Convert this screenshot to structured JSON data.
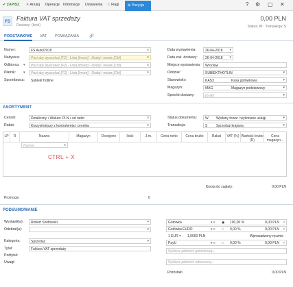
{
  "toolbar": {
    "save": "ZAPISZ",
    "cancel": "Anuluj",
    "operations": "Operacje",
    "info": "Informacje",
    "settings": "Ustawienia",
    "flags": "Flagi",
    "position": "Pozycja",
    "window_icons": [
      "?",
      "⚙",
      "▢",
      "✕"
    ]
  },
  "header": {
    "badge": "FS",
    "title": "Faktura VAT sprzedaży",
    "subtitle": "Dostawy: (brak)",
    "amount": "0,00 PLN",
    "status": "Status: W  ·  Transakcja: S"
  },
  "tabs": [
    "PODSTAWOWE",
    "VAT",
    "POWIĄZANIA",
    "🔗"
  ],
  "left_form": {
    "numer_label": "Numer:",
    "numer_value": "FS Auto/2018",
    "nabywca_label": "Nabywca:",
    "nabywca_value": "Pozi aby wyszukać [F2] - Lista [Insert] - Dodaj i wstaw [Ctrl]",
    "odbiorca_label": "Odbiorca:",
    "odbiorca_value": "Pozi aby wyszukać [F2] - Lista [Insert] - Dodaj i wstaw [Ctrl]",
    "platnik_label": "Płatnik:",
    "platnik_value": "Pozi aby wyszukać [F2] - Lista [Insert] - Dodaj i wstaw [Ctrl]",
    "sprzedawca_label": "Sprzedawca:",
    "sprzedawca_value": "Subiekt hotline"
  },
  "right_form": {
    "data_wyst_label": "Data wystawienia:",
    "data_wyst_value": "26-04-2018",
    "data_zak_label": "Data zak. dostawy:",
    "data_zak_value": "26-04-2018",
    "miejsce_label": "Miejsce wystawienia:",
    "miejsce_value": "Wrocław",
    "oddzial_label": "Oddział:",
    "oddzial_value": "SUBIEKTHOTLIN",
    "stanowisko_label": "Stanowisko:",
    "stanowisko_code": "KAS3",
    "stanowisko_value": "Kasa gotówkowa",
    "magazyn_label": "Magazyn:",
    "magazyn_code": "MAG",
    "magazyn_value": "Magazyn podstawowy",
    "sposob_label": "Sposób dostawy:",
    "sposob_value": "(brak)"
  },
  "asortyment": {
    "title": "ASORTYMENT",
    "cennik_label": "Cennik:",
    "cennik_value": "Detaliczny • Waluta: PLN • od netto",
    "rabat_label": "Rabat:",
    "rabat_value": "Korzystniejszy z kontrahenta i cennika",
    "status_label": "Status dokumentu:",
    "status_code": "W",
    "status_value": "Wydany towar i wykonane usługi",
    "transakcja_label": "Transakcja:",
    "transakcja_code": "S",
    "transakcja_value": "Sprzedaż krajowa"
  },
  "grid": {
    "headers": [
      "LP",
      "R",
      "Nazwa",
      "Magazyn",
      "Dostępne",
      "Ilość",
      "J.m.",
      "Cena netto",
      "Cena brutto",
      "Rabat",
      "VAT (%)",
      "Wartość brutto (R)",
      "Cena magazyn..."
    ],
    "placeholder": "Nazwa",
    "hint": "CTRL + X"
  },
  "kwota": {
    "label": "Kwota do zapłaty:",
    "value": "0,00 PLN"
  },
  "promocje": {
    "label": "Promocje:",
    "value": "0"
  },
  "podsumowanie": {
    "title": "PODSUMOWANIE",
    "wystawil_label": "Wystawił(a):",
    "wystawil_value": "Robert Szefowski",
    "odebral_label": "Odebrał(a):",
    "odebral_value": "",
    "kategoria_label": "Kategoria:",
    "kategoria_value": "Sprzedaż",
    "tytul_label": "Tytuł:",
    "tytul_value": "Faktura VAT sprzedaży",
    "podtytul_label": "Podtytuł:",
    "uwagi_label": "Uwagi:"
  },
  "payments": {
    "gotowka_label": "Gotówka",
    "gotowka_pct": "100,00 %",
    "gotowka_value": "0,00 PLN",
    "euro_label": "Gotówka EURO",
    "euro_pct": "0,00 %",
    "euro_value": "0,00 PLN",
    "kurs_left": "1 EUR =",
    "kurs_right": "1,0000 PLN",
    "kurs_note": "Wprowadzony ręcznie",
    "payu_label": "PayU",
    "payu_pct": "0,00 %",
    "payu_value": "0,00 PLN",
    "placeholder1": "Wybierz płatność gotówkową...",
    "placeholder2": "Wybierz płatność odroczoną...",
    "pozostalo_label": "Pozostało",
    "pozostalo_value": "0,00 PLN"
  }
}
